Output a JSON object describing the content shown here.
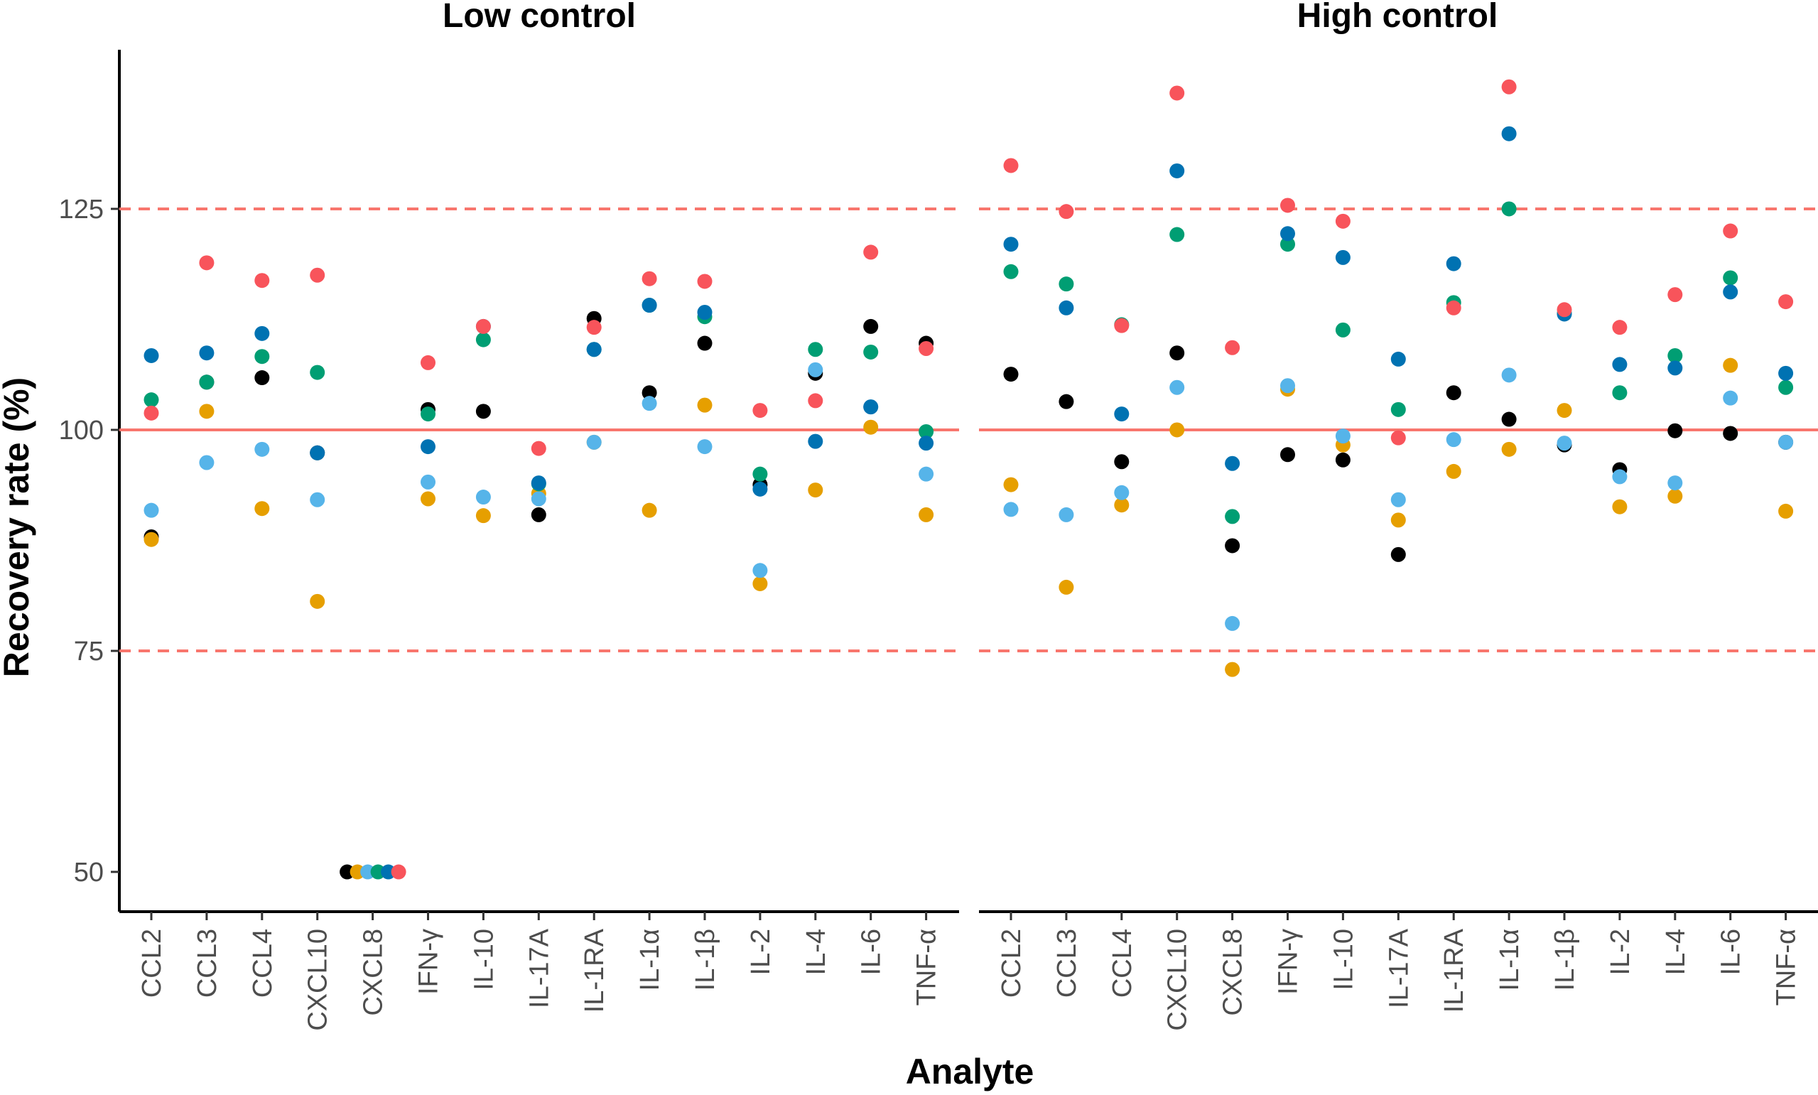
{
  "chart_data": {
    "type": "scatter",
    "ylabel": "Recovery rate (%)",
    "xlabel": "Analyte",
    "ylim": [
      45.5,
      143
    ],
    "yticks": [
      50,
      75,
      100,
      125
    ],
    "categories": [
      "CCL2",
      "CCL3",
      "CCL4",
      "CXCL10",
      "CXCL8",
      "IFN-γ",
      "IL-10",
      "IL-17A",
      "IL-1RA",
      "IL-1α",
      "IL-1β",
      "IL-2",
      "IL-4",
      "IL-6",
      "TNF-α"
    ],
    "reference_lines": [
      {
        "value": 100,
        "style": "solid",
        "color": "#F8766D"
      },
      {
        "value": 125,
        "style": "dashed",
        "color": "#F8766D"
      },
      {
        "value": 75,
        "style": "dashed",
        "color": "#F8766D"
      }
    ],
    "series_colors": {
      "black": "#000000",
      "orange": "#E69F00",
      "skyblue": "#56B4E9",
      "green": "#009E73",
      "blue": "#0072B2",
      "red": "#F8545B"
    },
    "panels": [
      {
        "title": "Low control",
        "points": {
          "CCL2": {
            "black": 87.9,
            "orange": 87.6,
            "skyblue": 90.9,
            "green": 103.4,
            "blue": 108.4,
            "red": 101.9
          },
          "CCL3": {
            "black": 105.4,
            "orange": 102.1,
            "skyblue": 96.3,
            "green": 105.4,
            "blue": 108.7,
            "red": 118.9
          },
          "CCL4": {
            "black": 105.9,
            "orange": 91.1,
            "skyblue": 97.8,
            "green": 108.3,
            "blue": 110.9,
            "red": 116.9
          },
          "CXCL10": {
            "black": 97.4,
            "orange": 80.6,
            "skyblue": 92.1,
            "green": 106.5,
            "blue": 97.4,
            "red": 117.5
          },
          "CXCL8": {
            "black": 50.0,
            "orange": 50.0,
            "skyblue": 50.0,
            "green": 50.0,
            "blue": 50.0,
            "red": 50.0
          },
          "IFN-γ": {
            "black": 102.3,
            "orange": 92.2,
            "skyblue": 94.1,
            "green": 101.8,
            "blue": 98.1,
            "red": 107.6
          },
          "IL-10": {
            "black": 102.1,
            "orange": 90.3,
            "skyblue": 92.4,
            "green": 110.2,
            "blue": 111.7,
            "red": 111.7
          },
          "IL-17A": {
            "black": 90.4,
            "orange": 92.8,
            "skyblue": 92.2,
            "green": 93.9,
            "blue": 94.0,
            "red": 97.9
          },
          "IL-1RA": {
            "black": 112.6,
            "orange": 98.6,
            "skyblue": 98.6,
            "green": 109.1,
            "blue": 109.1,
            "red": 111.6
          },
          "IL-1α": {
            "black": 104.2,
            "orange": 90.9,
            "skyblue": 103.0,
            "green": 114.1,
            "blue": 114.1,
            "red": 117.1
          },
          "IL-1β": {
            "black": 109.8,
            "orange": 102.8,
            "skyblue": 98.1,
            "green": 112.8,
            "blue": 113.3,
            "red": 116.8
          },
          "IL-2": {
            "black": 93.8,
            "orange": 82.6,
            "skyblue": 84.1,
            "green": 95.0,
            "blue": 93.3,
            "red": 102.2
          },
          "IL-4": {
            "black": 106.4,
            "orange": 93.2,
            "skyblue": 106.8,
            "green": 109.1,
            "blue": 98.7,
            "red": 103.3
          },
          "IL-6": {
            "black": 111.7,
            "orange": 100.3,
            "skyblue": 102.6,
            "green": 108.8,
            "blue": 102.6,
            "red": 120.1
          },
          "TNF-α": {
            "black": 109.8,
            "orange": 90.4,
            "skyblue": 95.0,
            "green": 99.8,
            "blue": 98.5,
            "red": 109.2
          }
        }
      },
      {
        "title": "High control",
        "points": {
          "CCL2": {
            "black": 106.3,
            "orange": 93.8,
            "skyblue": 91.0,
            "green": 117.9,
            "blue": 121.0,
            "red": 129.9
          },
          "CCL3": {
            "black": 103.2,
            "orange": 82.2,
            "skyblue": 90.4,
            "green": 116.5,
            "blue": 113.8,
            "red": 124.7
          },
          "CCL4": {
            "black": 96.4,
            "orange": 91.5,
            "skyblue": 92.9,
            "green": 111.9,
            "blue": 101.8,
            "red": 111.8
          },
          "CXCL10": {
            "black": 108.7,
            "orange": 100.0,
            "skyblue": 104.8,
            "green": 122.1,
            "blue": 129.3,
            "red": 138.1
          },
          "CXCL8": {
            "black": 86.9,
            "orange": 72.9,
            "skyblue": 78.1,
            "green": 90.2,
            "blue": 96.2,
            "red": 109.3
          },
          "IFN-γ": {
            "black": 97.2,
            "orange": 104.6,
            "skyblue": 105.0,
            "green": 121.0,
            "blue": 122.2,
            "red": 125.4
          },
          "IL-10": {
            "black": 96.6,
            "orange": 98.3,
            "skyblue": 99.3,
            "green": 111.3,
            "blue": 119.5,
            "red": 123.6
          },
          "IL-17A": {
            "black": 85.9,
            "orange": 89.8,
            "skyblue": 92.1,
            "green": 102.3,
            "blue": 108.0,
            "red": 99.1
          },
          "IL-1RA": {
            "black": 104.2,
            "orange": 95.3,
            "skyblue": 98.9,
            "green": 114.4,
            "blue": 118.8,
            "red": 113.8
          },
          "IL-1α": {
            "black": 101.2,
            "orange": 97.8,
            "skyblue": 106.2,
            "green": 125.0,
            "blue": 133.5,
            "red": 138.8
          },
          "IL-1β": {
            "black": 98.3,
            "orange": 102.2,
            "skyblue": 98.5,
            "green": 113.2,
            "blue": 113.1,
            "red": 113.6
          },
          "IL-2": {
            "black": 95.5,
            "orange": 91.3,
            "skyblue": 94.7,
            "green": 104.2,
            "blue": 107.4,
            "red": 111.6
          },
          "IL-4": {
            "black": 99.9,
            "orange": 92.5,
            "skyblue": 94.0,
            "green": 108.4,
            "blue": 107.0,
            "red": 115.3
          },
          "IL-6": {
            "black": 99.6,
            "orange": 107.3,
            "skyblue": 103.6,
            "green": 117.2,
            "blue": 115.6,
            "red": 122.5
          },
          "TNF-α": {
            "black": 98.6,
            "orange": 90.8,
            "skyblue": 98.6,
            "green": 104.8,
            "blue": 106.4,
            "red": 114.5
          }
        }
      }
    ]
  }
}
